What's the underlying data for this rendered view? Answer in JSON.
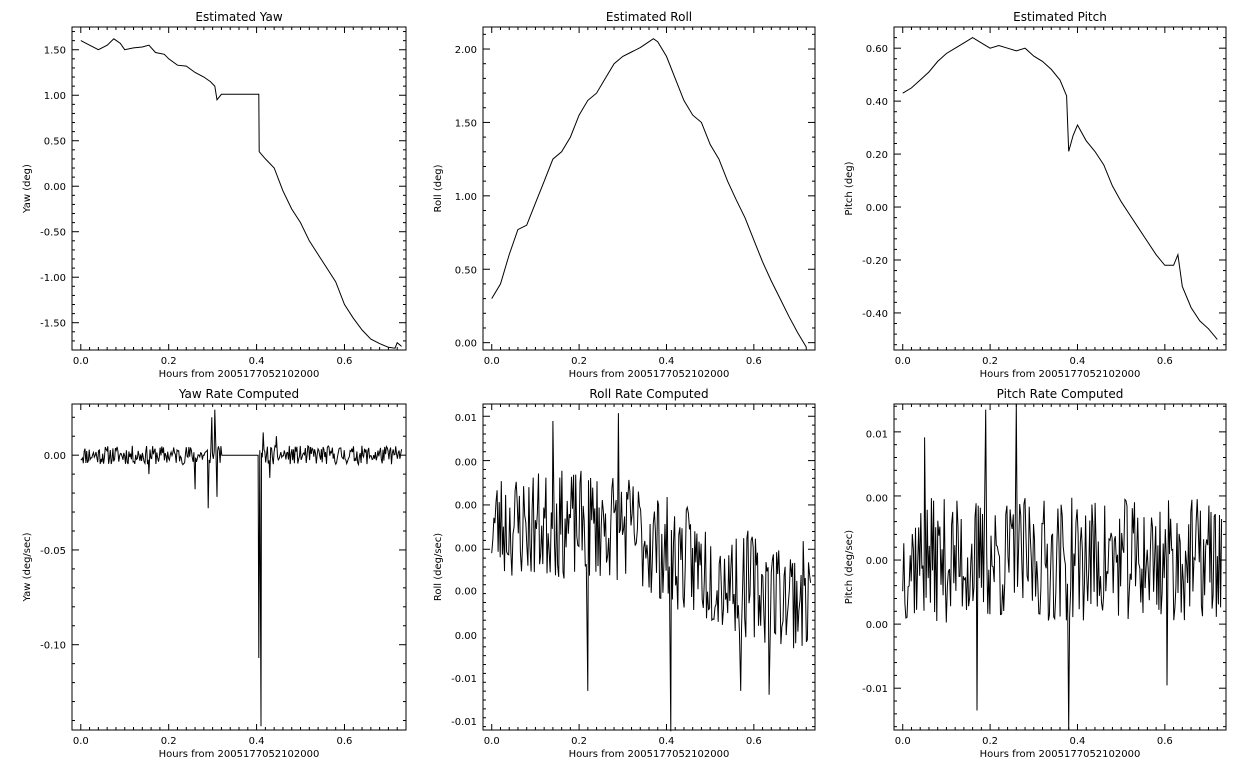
{
  "figure": {
    "xlabel": "Hours from 2005177052102000"
  },
  "chart_data": [
    {
      "type": "line",
      "title": "Estimated Yaw",
      "xlabel": "Hours from 2005177052102000",
      "ylabel": "Yaw (deg)",
      "xlim": [
        -0.02,
        0.74
      ],
      "ylim": [
        -1.8,
        1.75
      ],
      "xticks": [
        0.0,
        0.2,
        0.4,
        0.6
      ],
      "xtick_labels": [
        "0.0",
        "0.2",
        "0.4",
        "0.6"
      ],
      "yticks": [
        1.5,
        1.0,
        0.5,
        0.0,
        -0.5,
        -1.0,
        -1.5
      ],
      "ytick_labels": [
        "1.50",
        "1.00",
        "0.50",
        "0.00",
        "-0.50",
        "-1.00",
        "-1.50"
      ],
      "x": [
        0.0,
        0.02,
        0.04,
        0.06,
        0.075,
        0.09,
        0.1,
        0.12,
        0.14,
        0.155,
        0.17,
        0.19,
        0.2,
        0.22,
        0.24,
        0.26,
        0.28,
        0.295,
        0.305,
        0.31,
        0.32,
        0.36,
        0.405,
        0.406,
        0.42,
        0.44,
        0.46,
        0.48,
        0.5,
        0.52,
        0.54,
        0.56,
        0.58,
        0.6,
        0.62,
        0.64,
        0.66,
        0.68,
        0.7,
        0.715,
        0.72,
        0.73
      ],
      "y": [
        1.6,
        1.55,
        1.5,
        1.55,
        1.62,
        1.57,
        1.5,
        1.52,
        1.53,
        1.55,
        1.47,
        1.45,
        1.4,
        1.33,
        1.32,
        1.25,
        1.2,
        1.15,
        1.1,
        0.95,
        1.01,
        1.01,
        1.01,
        0.38,
        0.3,
        0.2,
        -0.05,
        -0.25,
        -0.4,
        -0.6,
        -0.75,
        -0.9,
        -1.05,
        -1.3,
        -1.45,
        -1.58,
        -1.68,
        -1.73,
        -1.77,
        -1.78,
        -1.72,
        -1.76
      ]
    },
    {
      "type": "line",
      "title": "Estimated Roll",
      "xlabel": "Hours from 2005177052102000",
      "ylabel": "Roll (deg)",
      "xlim": [
        -0.02,
        0.74
      ],
      "ylim": [
        -0.05,
        2.15
      ],
      "xticks": [
        0.0,
        0.2,
        0.4,
        0.6
      ],
      "xtick_labels": [
        "0.0",
        "0.2",
        "0.4",
        "0.6"
      ],
      "yticks": [
        2.0,
        1.5,
        1.0,
        0.5,
        0.0
      ],
      "ytick_labels": [
        "2.00",
        "1.50",
        "1.00",
        "0.50",
        "0.00"
      ],
      "x": [
        0.0,
        0.02,
        0.04,
        0.06,
        0.08,
        0.1,
        0.12,
        0.14,
        0.16,
        0.18,
        0.2,
        0.22,
        0.24,
        0.26,
        0.28,
        0.3,
        0.32,
        0.34,
        0.36,
        0.37,
        0.38,
        0.4,
        0.42,
        0.44,
        0.46,
        0.48,
        0.5,
        0.52,
        0.54,
        0.56,
        0.58,
        0.6,
        0.62,
        0.64,
        0.66,
        0.68,
        0.7,
        0.72
      ],
      "y": [
        0.3,
        0.4,
        0.6,
        0.77,
        0.8,
        0.95,
        1.1,
        1.25,
        1.3,
        1.4,
        1.55,
        1.65,
        1.7,
        1.8,
        1.9,
        1.95,
        1.98,
        2.01,
        2.05,
        2.07,
        2.05,
        1.95,
        1.8,
        1.65,
        1.55,
        1.5,
        1.35,
        1.25,
        1.1,
        0.97,
        0.85,
        0.7,
        0.55,
        0.42,
        0.3,
        0.18,
        0.07,
        -0.03
      ]
    },
    {
      "type": "line",
      "title": "Estimated Pitch",
      "xlabel": "Hours from 2005177052102000",
      "ylabel": "Pitch (deg)",
      "xlim": [
        -0.02,
        0.74
      ],
      "ylim": [
        -0.54,
        0.68
      ],
      "xticks": [
        0.0,
        0.2,
        0.4,
        0.6
      ],
      "xtick_labels": [
        "0.0",
        "0.2",
        "0.4",
        "0.6"
      ],
      "yticks": [
        0.6,
        0.4,
        0.2,
        0.0,
        -0.2,
        -0.4
      ],
      "ytick_labels": [
        "0.60",
        "0.40",
        "0.20",
        "0.00",
        "-0.20",
        "-0.40"
      ],
      "x": [
        0.0,
        0.02,
        0.04,
        0.06,
        0.08,
        0.1,
        0.12,
        0.14,
        0.16,
        0.18,
        0.2,
        0.22,
        0.24,
        0.26,
        0.28,
        0.3,
        0.32,
        0.34,
        0.36,
        0.375,
        0.38,
        0.39,
        0.4,
        0.42,
        0.44,
        0.46,
        0.48,
        0.5,
        0.52,
        0.54,
        0.56,
        0.58,
        0.6,
        0.62,
        0.63,
        0.64,
        0.66,
        0.68,
        0.7,
        0.72
      ],
      "y": [
        0.43,
        0.45,
        0.48,
        0.51,
        0.55,
        0.58,
        0.6,
        0.62,
        0.64,
        0.62,
        0.6,
        0.61,
        0.6,
        0.59,
        0.6,
        0.57,
        0.55,
        0.52,
        0.48,
        0.42,
        0.21,
        0.27,
        0.31,
        0.25,
        0.21,
        0.16,
        0.08,
        0.02,
        -0.03,
        -0.08,
        -0.13,
        -0.18,
        -0.22,
        -0.22,
        -0.18,
        -0.3,
        -0.38,
        -0.43,
        -0.46,
        -0.5
      ]
    },
    {
      "type": "line",
      "title": "Yaw Rate Computed",
      "xlabel": "Hours from 2005177052102000",
      "ylabel": "Yaw (deg/sec)",
      "xlim": [
        -0.02,
        0.74
      ],
      "ylim": [
        -0.145,
        0.027
      ],
      "xticks": [
        0.0,
        0.2,
        0.4,
        0.6
      ],
      "xtick_labels": [
        "0.0",
        "0.2",
        "0.4",
        "0.6"
      ],
      "yticks": [
        0.0,
        -0.05,
        -0.1
      ],
      "ytick_labels": [
        "0.00",
        "-0.05",
        "-0.10"
      ],
      "noise": {
        "seed": 11,
        "n": 380,
        "amp": 0.005
      },
      "flat_segment": {
        "from": 0.32,
        "to": 0.405,
        "value": 0.0
      },
      "spikes": [
        {
          "x": 0.155,
          "y": -0.01
        },
        {
          "x": 0.26,
          "y": -0.018
        },
        {
          "x": 0.29,
          "y": -0.028
        },
        {
          "x": 0.298,
          "y": 0.02
        },
        {
          "x": 0.305,
          "y": 0.024
        },
        {
          "x": 0.31,
          "y": -0.022
        },
        {
          "x": 0.405,
          "y": -0.107
        },
        {
          "x": 0.41,
          "y": -0.143
        },
        {
          "x": 0.415,
          "y": 0.012
        },
        {
          "x": 0.43,
          "y": -0.012
        },
        {
          "x": 0.445,
          "y": 0.01
        }
      ]
    },
    {
      "type": "line",
      "title": "Roll Rate Computed",
      "xlabel": "Hours from 2005177052102000",
      "ylabel": "Roll (deg/sec)",
      "xlim": [
        -0.02,
        0.74
      ],
      "ylim": [
        -0.0125,
        0.0125
      ],
      "xticks": [
        0.0,
        0.2,
        0.4,
        0.6
      ],
      "xtick_labels": [
        "0.0",
        "0.2",
        "0.4",
        "0.6"
      ],
      "yticks": [
        0.0115,
        0.0081,
        0.0048,
        0.0015,
        -0.0018,
        -0.0052,
        -0.0085,
        -0.0118
      ],
      "ytick_labels": [
        "0.01",
        "0.00",
        "0.00",
        "0.00",
        "0.00",
        "0.00",
        "-0.01",
        "-0.01"
      ],
      "noise": {
        "seed": 23,
        "n": 300,
        "amp": 0.0042,
        "trend_from": 0.0032,
        "trend_to": -0.0022
      },
      "spikes": [
        {
          "x": 0.14,
          "y": 0.0112
        },
        {
          "x": 0.22,
          "y": -0.0095
        },
        {
          "x": 0.29,
          "y": 0.0118
        },
        {
          "x": 0.41,
          "y": -0.0126
        },
        {
          "x": 0.57,
          "y": -0.0095
        },
        {
          "x": 0.635,
          "y": -0.0098
        }
      ]
    },
    {
      "type": "line",
      "title": "Pitch Rate Computed",
      "xlabel": "Hours from 2005177052102000",
      "ylabel": "Pitch (deg/sec)",
      "xlim": [
        -0.02,
        0.74
      ],
      "ylim": [
        -0.0122,
        0.0112
      ],
      "xticks": [
        0.0,
        0.2,
        0.4,
        0.6
      ],
      "xtick_labels": [
        "0.0",
        "0.2",
        "0.4",
        "0.6"
      ],
      "yticks": [
        0.0091,
        0.0045,
        0.0,
        -0.0046,
        -0.0092
      ],
      "ytick_labels": [
        "0.01",
        "0.00",
        "0.00",
        "0.00",
        "-0.01"
      ],
      "noise": {
        "seed": 37,
        "n": 300,
        "amp": 0.0045
      },
      "spikes": [
        {
          "x": 0.05,
          "y": 0.0088
        },
        {
          "x": 0.17,
          "y": -0.0108
        },
        {
          "x": 0.19,
          "y": 0.0108
        },
        {
          "x": 0.26,
          "y": 0.0112
        },
        {
          "x": 0.38,
          "y": -0.0122
        },
        {
          "x": 0.605,
          "y": -0.009
        }
      ]
    }
  ]
}
